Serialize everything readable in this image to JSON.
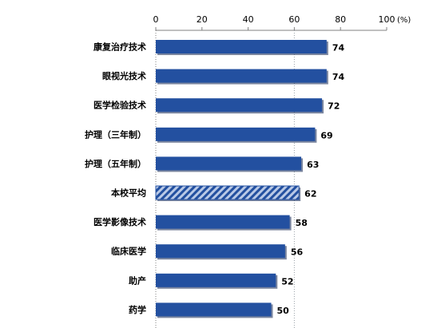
{
  "chart_data": {
    "type": "bar",
    "orientation": "horizontal",
    "categories": [
      "康复治疗技术",
      "眼视光技术",
      "医学检验技术",
      "护理（三年制）",
      "护理（五年制）",
      "本校平均",
      "医学影像技术",
      "临床医学",
      "助产",
      "药学"
    ],
    "values": [
      74,
      74,
      72,
      69,
      63,
      62,
      58,
      56,
      52,
      50
    ],
    "highlighted_category": "本校平均",
    "x_ticks": [
      "0",
      "20",
      "40",
      "60",
      "80",
      "100"
    ],
    "x_unit": "(%)",
    "xlim": [
      0,
      100
    ],
    "reference_line": 60,
    "grid": false,
    "legend": "none",
    "title": "",
    "xlabel": "",
    "ylabel": ""
  },
  "colors": {
    "bar": "#2350a0",
    "bar_shadow": "#0e2250",
    "hatch_light": "#b9c9e6",
    "axis": "#808080",
    "reference_line": "#9aa0a8"
  }
}
